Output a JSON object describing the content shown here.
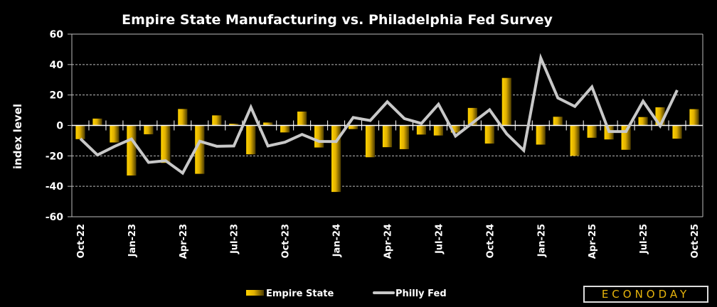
{
  "chart_data": {
    "type": "bar",
    "title": "Empire State Manufacturing vs. Philadelphia Fed Survey",
    "xlabel": "",
    "ylabel": "index level",
    "ylim": [
      -60,
      60
    ],
    "yticks": [
      -60,
      -40,
      -20,
      0,
      20,
      40,
      60
    ],
    "ytick_labels": [
      "-60",
      "-40",
      "-20",
      "0",
      "20",
      "40",
      "60"
    ],
    "grid": true,
    "legend_position": "bottom",
    "categories": [
      "Oct-22",
      "Nov-22",
      "Dec-22",
      "Jan-23",
      "Feb-23",
      "Mar-23",
      "Apr-23",
      "May-23",
      "Jun-23",
      "Jul-23",
      "Aug-23",
      "Sep-23",
      "Oct-23",
      "Nov-23",
      "Dec-23",
      "Jan-24",
      "Feb-24",
      "Mar-24",
      "Apr-24",
      "May-24",
      "Jun-24",
      "Jul-24",
      "Aug-24",
      "Sep-24",
      "Oct-24",
      "Nov-24",
      "Dec-24",
      "Jan-25",
      "Feb-25",
      "Mar-25",
      "Apr-25",
      "May-25",
      "Jun-25",
      "Jul-25",
      "Aug-25",
      "Sep-25",
      "Oct-25"
    ],
    "xtick_labels": [
      "Oct-22",
      "Jan-23",
      "Apr-23",
      "Jul-23",
      "Oct-23",
      "Jan-24",
      "Apr-24",
      "Jul-24",
      "Oct-24",
      "Jan-25",
      "Apr-25",
      "Jul-25",
      "Oct-25"
    ],
    "xtick_indices": [
      0,
      3,
      6,
      9,
      12,
      15,
      18,
      21,
      24,
      27,
      30,
      33,
      36
    ],
    "series": [
      {
        "name": "Empire State",
        "type": "bar",
        "color": "#f5c400",
        "values": [
          -9,
          4.5,
          -11.2,
          -32.9,
          -5.8,
          -24.6,
          10.8,
          -31.8,
          6.6,
          1.1,
          -19,
          1.9,
          -4.6,
          9.1,
          -14.5,
          -43.7,
          -2.4,
          -20.9,
          -14.3,
          -15.6,
          -6,
          -6.6,
          -4.7,
          11.5,
          -11.9,
          31.2,
          0.2,
          -12.6,
          5.7,
          -20,
          -8.1,
          -9.2,
          -16,
          5.5,
          11.9,
          -8.7,
          10.7
        ]
      },
      {
        "name": "Philly Fed",
        "type": "line",
        "color": "#c8c8c8",
        "values": [
          -8.7,
          -19.4,
          -13.8,
          -8.9,
          -24.3,
          -23.2,
          -31.3,
          -10.4,
          -13.7,
          -13.5,
          12,
          -13.5,
          -11,
          -5.9,
          -10.5,
          -10.6,
          5.2,
          3.2,
          15.5,
          4.5,
          1.3,
          13.9,
          -7,
          1.7,
          10.3,
          -5.5,
          -16.4,
          44.3,
          18.1,
          12.5,
          25.3,
          -4,
          -4,
          15.9,
          -0.3,
          23.2,
          null
        ]
      }
    ]
  },
  "legend": {
    "items": [
      {
        "label": "Empire State"
      },
      {
        "label": "Philly Fed"
      }
    ]
  },
  "logo": {
    "text": "ECONODAY"
  }
}
